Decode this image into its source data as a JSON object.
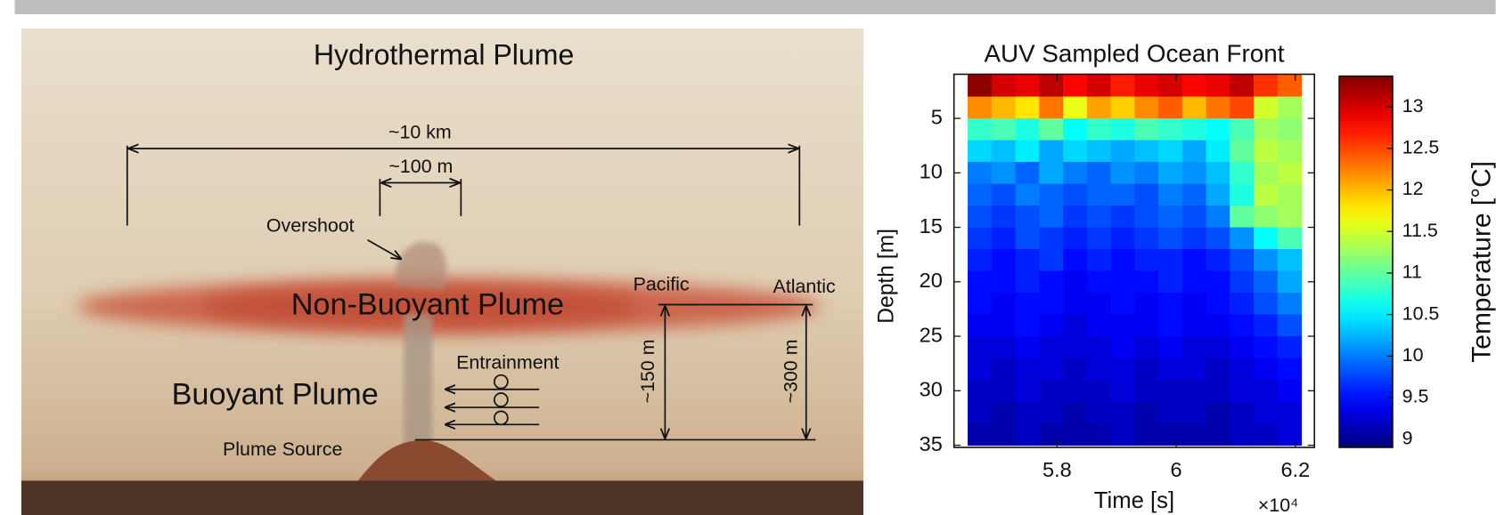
{
  "diagram": {
    "title": "Hydrothermal Plume",
    "width_large": "~10 km",
    "width_small": "~100 m",
    "overshoot": "Overshoot",
    "non_buoyant": "Non-Buoyant Plume",
    "pacific": "Pacific",
    "atlantic": "Atlantic",
    "entrainment": "Entrainment",
    "buoyant": "Buoyant Plume",
    "height_pacific": "~150 m",
    "height_atlantic": "~300 m",
    "source": "Plume Source"
  },
  "chart_data": {
    "type": "heatmap",
    "title": "AUV Sampled Ocean Front",
    "x_label": "Time [s]",
    "x_multiplier": "×10⁴",
    "y_label": "Depth [m]",
    "colorbar_label": "Temperature [°C]",
    "colormap": "jet",
    "x": [
      5.67,
      5.71,
      5.75,
      5.79,
      5.83,
      5.87,
      5.91,
      5.95,
      5.99,
      6.03,
      6.07,
      6.11,
      6.15,
      6.19
    ],
    "y": [
      2,
      4,
      6,
      8,
      10,
      12,
      14,
      16,
      18,
      20,
      22,
      24,
      26,
      28,
      30,
      32,
      34
    ],
    "values": [
      [
        13.3,
        13.0,
        12.9,
        13.1,
        12.8,
        13.0,
        12.7,
        12.9,
        13.0,
        12.8,
        12.9,
        13.1,
        12.6,
        12.4
      ],
      [
        12.2,
        12.0,
        11.8,
        12.3,
        11.6,
        12.1,
        11.9,
        12.2,
        12.4,
        12.0,
        12.3,
        12.5,
        11.5,
        11.3
      ],
      [
        10.8,
        10.9,
        10.7,
        11.0,
        10.6,
        10.8,
        10.7,
        10.9,
        10.8,
        10.7,
        10.6,
        10.9,
        11.3,
        11.2
      ],
      [
        10.4,
        10.3,
        10.5,
        10.2,
        10.4,
        10.3,
        10.2,
        10.3,
        10.4,
        10.2,
        10.5,
        11.0,
        11.4,
        11.3
      ],
      [
        10.0,
        10.1,
        9.9,
        10.2,
        10.0,
        9.9,
        10.1,
        10.0,
        10.2,
        10.1,
        10.3,
        10.8,
        11.3,
        11.4
      ],
      [
        9.9,
        9.8,
        10.0,
        9.9,
        9.8,
        9.9,
        9.9,
        9.8,
        10.0,
        9.9,
        10.2,
        10.7,
        11.4,
        11.3
      ],
      [
        9.8,
        9.7,
        9.8,
        9.9,
        9.7,
        9.8,
        9.7,
        9.8,
        9.9,
        9.8,
        10.0,
        11.0,
        11.2,
        11.3
      ],
      [
        9.7,
        9.6,
        9.8,
        9.7,
        9.6,
        9.7,
        9.6,
        9.7,
        9.8,
        9.7,
        9.8,
        10.1,
        10.6,
        10.9
      ],
      [
        9.6,
        9.5,
        9.6,
        9.7,
        9.5,
        9.6,
        9.5,
        9.6,
        9.6,
        9.5,
        9.6,
        9.8,
        10.1,
        10.3
      ],
      [
        9.5,
        9.5,
        9.6,
        9.5,
        9.4,
        9.5,
        9.5,
        9.5,
        9.6,
        9.5,
        9.5,
        9.7,
        9.9,
        10.2
      ],
      [
        9.5,
        9.4,
        9.5,
        9.5,
        9.4,
        9.4,
        9.5,
        9.4,
        9.5,
        9.4,
        9.5,
        9.6,
        9.8,
        10.0
      ],
      [
        9.4,
        9.4,
        9.5,
        9.4,
        9.3,
        9.4,
        9.4,
        9.4,
        9.5,
        9.4,
        9.4,
        9.5,
        9.6,
        9.8
      ],
      [
        9.3,
        9.3,
        9.4,
        9.3,
        9.3,
        9.3,
        9.4,
        9.3,
        9.4,
        9.3,
        9.3,
        9.4,
        9.5,
        9.6
      ],
      [
        9.3,
        9.2,
        9.3,
        9.3,
        9.2,
        9.3,
        9.3,
        9.2,
        9.3,
        9.3,
        9.2,
        9.3,
        9.4,
        9.5
      ],
      [
        9.2,
        9.2,
        9.3,
        9.2,
        9.2,
        9.2,
        9.3,
        9.2,
        9.2,
        9.2,
        9.2,
        9.3,
        9.3,
        9.4
      ],
      [
        9.2,
        9.1,
        9.2,
        9.2,
        9.1,
        9.2,
        9.2,
        9.1,
        9.2,
        9.2,
        9.1,
        9.2,
        9.3,
        9.3
      ],
      [
        9.1,
        9.1,
        9.2,
        9.1,
        9.1,
        9.1,
        9.2,
        9.1,
        9.1,
        9.1,
        9.1,
        9.2,
        9.2,
        9.3
      ]
    ],
    "xlim": [
      5.627,
      6.232
    ],
    "ylim": [
      0.95,
      35.2
    ],
    "y_inverted": true,
    "xticks": [
      5.8,
      6,
      6.2
    ],
    "yticks": [
      5,
      10,
      15,
      20,
      25,
      30,
      35
    ],
    "colorbar_lim": [
      8.9,
      13.37
    ],
    "colorbar_ticks": [
      9,
      9.5,
      10,
      10.5,
      11,
      11.5,
      12,
      12.5,
      13
    ]
  }
}
